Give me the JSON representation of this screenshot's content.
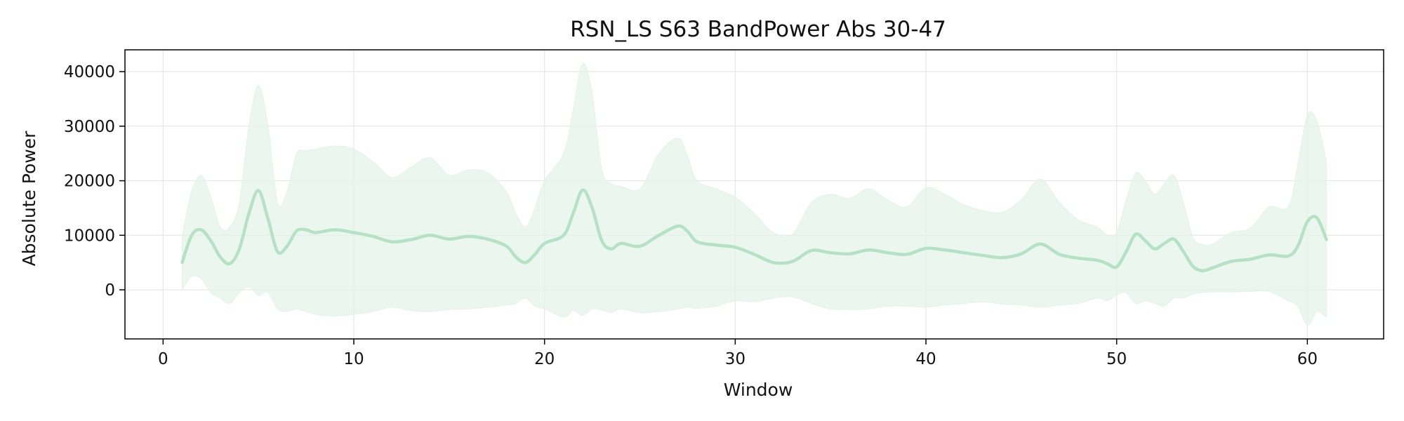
{
  "chart_data": {
    "type": "line",
    "title": "RSN_LS S63 BandPower Abs 30-47",
    "xlabel": "Window",
    "ylabel": "Absolute Power",
    "xlim": [
      -2,
      64
    ],
    "ylim": [
      -9000,
      44000
    ],
    "xticks": [
      0,
      10,
      20,
      30,
      40,
      50,
      60
    ],
    "yticks": [
      0,
      10000,
      20000,
      30000,
      40000
    ],
    "grid": true,
    "colors": {
      "line": "#b5e2c5",
      "band": "#e3f3e8",
      "grid": "#e6e6e6",
      "axis": "#000000"
    },
    "series": [
      {
        "x": [
          1,
          1.5,
          2,
          2.5,
          3,
          3.5,
          4,
          4.5,
          5,
          5.5,
          6,
          6.5,
          7,
          7.5,
          8,
          9,
          10,
          11,
          12,
          13,
          14,
          15,
          16,
          17,
          18,
          18.5,
          19,
          19.5,
          20,
          21,
          21.5,
          22,
          22.5,
          23,
          23.5,
          24,
          25,
          26,
          27,
          27.5,
          28,
          29,
          30,
          31,
          32,
          33,
          34,
          35,
          36,
          37,
          38,
          39,
          40,
          41,
          42,
          43,
          44,
          45,
          46,
          47,
          48,
          49,
          49.5,
          50,
          50.5,
          51,
          51.5,
          52,
          52.5,
          53,
          53.5,
          54,
          54.5,
          55,
          56,
          57,
          58,
          59,
          59.5,
          60,
          60.5,
          61
        ],
        "mean": [
          5000,
          10000,
          11000,
          9000,
          6000,
          4800,
          7500,
          14000,
          18200,
          13000,
          7000,
          8000,
          10800,
          11000,
          10500,
          11000,
          10500,
          9800,
          8800,
          9200,
          10000,
          9300,
          9800,
          9300,
          8000,
          6000,
          5000,
          6500,
          8500,
          10000,
          14000,
          18300,
          15000,
          9000,
          7500,
          8500,
          8000,
          10000,
          11700,
          10700,
          8800,
          8200,
          7800,
          6500,
          5000,
          5200,
          7200,
          6800,
          6600,
          7300,
          6800,
          6500,
          7600,
          7300,
          6800,
          6300,
          5900,
          6600,
          8400,
          6500,
          5800,
          5400,
          4800,
          4200,
          7000,
          10200,
          9000,
          7500,
          8500,
          9300,
          7000,
          4300,
          3500,
          4000,
          5200,
          5600,
          6400,
          6200,
          8000,
          12500,
          13200,
          9200
        ],
        "upper": [
          10000,
          18000,
          21000,
          17000,
          11500,
          11500,
          16000,
          30000,
          37500,
          30000,
          16000,
          18000,
          25000,
          25500,
          25800,
          26400,
          25800,
          23500,
          20600,
          22500,
          24200,
          21000,
          22000,
          21500,
          18000,
          14000,
          11500,
          15000,
          20000,
          25000,
          33000,
          41500,
          36000,
          22000,
          19500,
          19000,
          18500,
          25000,
          27800,
          24500,
          20000,
          18500,
          17000,
          14000,
          10500,
          10200,
          16000,
          17500,
          16800,
          18500,
          16500,
          15200,
          18700,
          17500,
          15600,
          14500,
          14200,
          16500,
          20300,
          16000,
          12800,
          11500,
          10000,
          10500,
          16500,
          21400,
          20000,
          17500,
          19500,
          21000,
          16000,
          9600,
          8300,
          8300,
          10500,
          11300,
          15200,
          15200,
          23000,
          32000,
          31000,
          23500
        ],
        "lower": [
          0,
          2500,
          2000,
          -500,
          -1500,
          -2500,
          -500,
          500,
          -1000,
          -500,
          -3500,
          -4000,
          -3500,
          -4000,
          -4500,
          -4800,
          -4500,
          -4000,
          -3200,
          -3800,
          -4000,
          -3600,
          -3500,
          -3200,
          -2800,
          -2500,
          -1500,
          -3000,
          -3500,
          -5000,
          -3800,
          -4700,
          -3500,
          -3700,
          -4200,
          -3500,
          -4200,
          -4000,
          -3500,
          -3200,
          -3400,
          -3000,
          -2000,
          -2200,
          -1500,
          -1300,
          -2500,
          -3500,
          -3600,
          -3500,
          -3000,
          -3000,
          -3200,
          -2800,
          -2500,
          -2200,
          -2600,
          -2800,
          -3200,
          -2800,
          -2500,
          -1500,
          -2000,
          -1000,
          -500,
          -2500,
          -2000,
          -2500,
          -3000,
          -1500,
          -1500,
          -800,
          -500,
          -400,
          -400,
          -300,
          -300,
          -2000,
          -3000,
          -6500,
          -4000,
          -5000
        ]
      }
    ]
  }
}
